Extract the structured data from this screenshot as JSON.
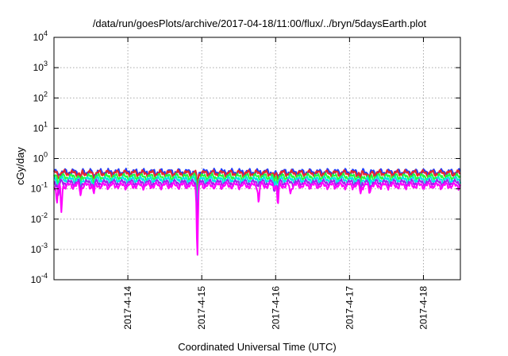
{
  "chart_data": {
    "type": "line",
    "title": "/data/run/goesPlots/archive/2017-04-18/11:00/flux/../bryn/5daysEarth.plot",
    "xlabel": "Coordinated Universal Time (UTC)",
    "ylabel": "cGy/day",
    "y_scale": "log",
    "ylim": [
      0.0001,
      10000
    ],
    "xlim": [
      "2017-04-13T00:00",
      "2017-04-18T12:00"
    ],
    "grid": true,
    "legend": "none",
    "x_ticks": [
      {
        "value": "2017-04-14",
        "label": "2017-4-14"
      },
      {
        "value": "2017-04-15",
        "label": "2017-4-15"
      },
      {
        "value": "2017-04-16",
        "label": "2017-4-16"
      },
      {
        "value": "2017-04-17",
        "label": "2017-4-17"
      },
      {
        "value": "2017-04-18",
        "label": "2017-4-18"
      }
    ],
    "y_ticks": [
      {
        "value": 0.0001,
        "base": "10",
        "exp": "-4"
      },
      {
        "value": 0.001,
        "base": "10",
        "exp": "-3"
      },
      {
        "value": 0.01,
        "base": "10",
        "exp": "-2"
      },
      {
        "value": 0.1,
        "base": "10",
        "exp": "-1"
      },
      {
        "value": 1,
        "base": "10",
        "exp": "0"
      },
      {
        "value": 10,
        "base": "10",
        "exp": "1"
      },
      {
        "value": 100,
        "base": "10",
        "exp": "2"
      },
      {
        "value": 1000,
        "base": "10",
        "exp": "3"
      },
      {
        "value": 10000,
        "base": "10",
        "exp": "4"
      }
    ],
    "series": [
      {
        "color": "#1e3cff",
        "base": 0.36,
        "dips": [
          [
            0.06,
            0.28
          ],
          [
            0.36,
            0.22
          ],
          [
            0.54,
            0.24
          ],
          [
            1.94,
            0.12
          ],
          [
            2.98,
            0.26
          ],
          [
            3.03,
            0.24
          ],
          [
            4.15,
            0.26
          ],
          [
            4.27,
            0.24
          ]
        ]
      },
      {
        "color": "#e8282e",
        "base": 0.33,
        "dips": [
          [
            0.06,
            0.22
          ],
          [
            0.36,
            0.2
          ],
          [
            0.54,
            0.22
          ],
          [
            1.94,
            0.09
          ],
          [
            2.98,
            0.22
          ],
          [
            3.03,
            0.2
          ],
          [
            4.15,
            0.22
          ],
          [
            4.27,
            0.2
          ]
        ]
      },
      {
        "color": "#1eff3c",
        "base": 0.25,
        "dips": [
          [
            0.06,
            0.14
          ],
          [
            0.36,
            0.16
          ],
          [
            0.54,
            0.16
          ],
          [
            1.94,
            0.05
          ],
          [
            2.98,
            0.16
          ],
          [
            3.03,
            0.15
          ],
          [
            4.15,
            0.15
          ],
          [
            4.27,
            0.15
          ]
        ]
      },
      {
        "color": "#00e5e5",
        "base": 0.2,
        "dips": [
          [
            0.06,
            0.1
          ],
          [
            0.36,
            0.12
          ],
          [
            0.54,
            0.12
          ],
          [
            1.94,
            0.02
          ],
          [
            2.98,
            0.12
          ],
          [
            3.03,
            0.1
          ],
          [
            4.15,
            0.11
          ],
          [
            4.27,
            0.11
          ]
        ]
      },
      {
        "color": "#a020f0",
        "base": 0.16,
        "dips": [
          [
            0.06,
            0.06
          ],
          [
            0.36,
            0.08
          ],
          [
            0.54,
            0.09
          ],
          [
            1.94,
            0.006
          ],
          [
            2.98,
            0.08
          ],
          [
            3.03,
            0.07
          ],
          [
            4.15,
            0.09
          ],
          [
            4.27,
            0.09
          ]
        ]
      },
      {
        "color": "#ff00ff",
        "base": 0.13,
        "dips": [
          [
            0.04,
            0.034
          ],
          [
            0.1,
            0.017
          ],
          [
            0.36,
            0.06
          ],
          [
            0.54,
            0.07
          ],
          [
            1.94,
            0.0006
          ],
          [
            2.77,
            0.034
          ],
          [
            3.03,
            0.03
          ],
          [
            3.2,
            0.07
          ],
          [
            4.15,
            0.07
          ],
          [
            4.27,
            0.07
          ]
        ]
      }
    ]
  }
}
